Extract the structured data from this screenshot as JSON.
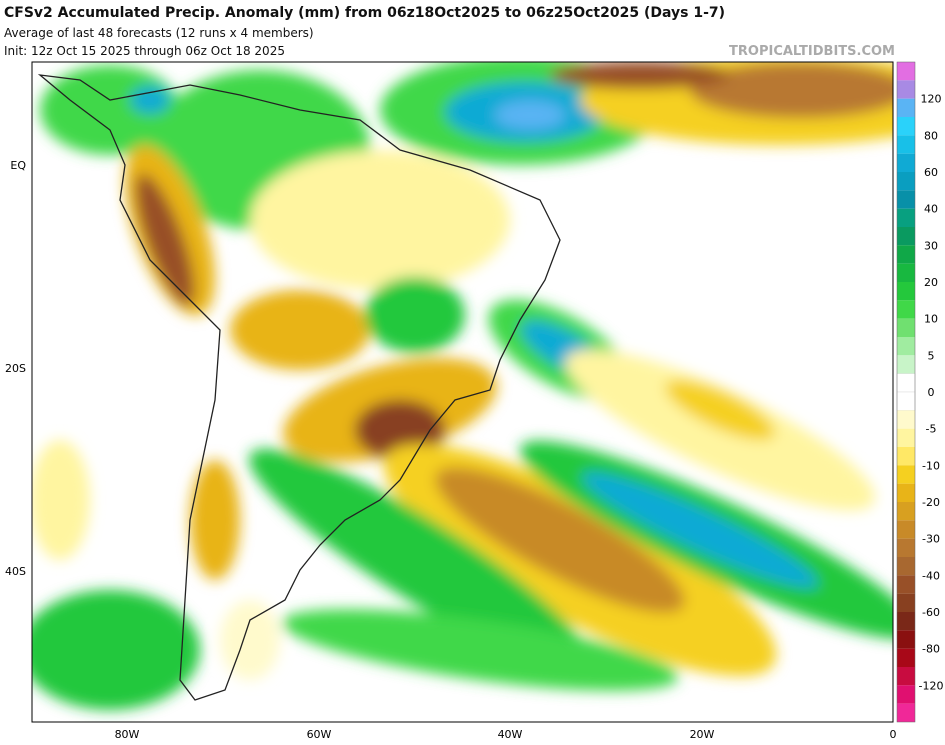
{
  "header": {
    "title": "CFSv2 Accumulated Precip. Anomaly (mm) from 06z18Oct2025 to 06z25Oct2025 (Days 1-7)",
    "subtitle": "Average of last 48 forecasts (12 runs x 4 members)",
    "init": "Init: 12z Oct 15 2025 through 06z Oct 18 2025",
    "watermark": "TROPICALTIDBITS.COM"
  },
  "map": {
    "lat_labels": [
      "EQ",
      "20S",
      "40S"
    ],
    "lon_labels": [
      "80W",
      "60W",
      "40W",
      "20W",
      "0"
    ]
  },
  "colorbar": {
    "colors": [
      "#e26ee2",
      "#a88ae4",
      "#5ab4f4",
      "#2ad2fa",
      "#18c0e8",
      "#10aad4",
      "#0a9ec0",
      "#0890a8",
      "#08a080",
      "#0a9a60",
      "#10a848",
      "#18b840",
      "#24c83c",
      "#40d848",
      "#70e070",
      "#a0eca0",
      "#c8f4c8",
      "#ffffff",
      "#ffffff",
      "#fffacc",
      "#fff5a0",
      "#ffe866",
      "#f5d020",
      "#e8b418",
      "#d8a020",
      "#c88a28",
      "#b87830",
      "#a86830",
      "#985028",
      "#884020",
      "#7a2818",
      "#8a1010",
      "#a80818",
      "#c80c40",
      "#e01070",
      "#f02898"
    ],
    "labels": [
      120,
      80,
      60,
      40,
      30,
      20,
      10,
      5,
      0,
      -5,
      -10,
      -20,
      -30,
      -40,
      -60,
      -80,
      -120
    ]
  }
}
